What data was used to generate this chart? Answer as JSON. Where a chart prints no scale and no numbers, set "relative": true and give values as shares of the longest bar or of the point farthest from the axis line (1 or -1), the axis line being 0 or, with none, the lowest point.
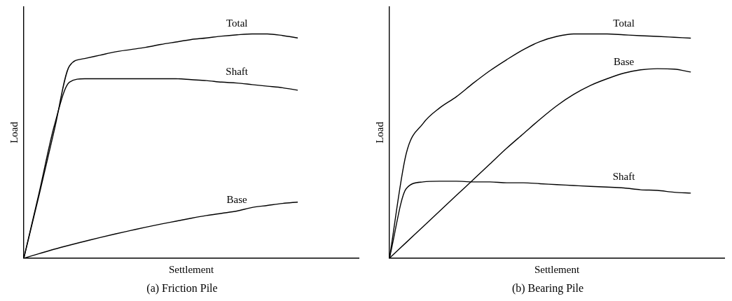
{
  "chart_data": [
    {
      "type": "line",
      "title": "(a) Friction Pile",
      "xlabel": "Settlement",
      "ylabel": "Load",
      "relative": true,
      "legend": false,
      "grid": false,
      "tick_labels": false,
      "marker": "none",
      "line_style": "solid",
      "categories": [
        null,
        null,
        null,
        null,
        null,
        null,
        null,
        null,
        null,
        null,
        null,
        null,
        null,
        null,
        null,
        null,
        null,
        null,
        null,
        null,
        null,
        null,
        null
      ],
      "series": [
        {
          "name": "Total",
          "color": "#000000",
          "values": [
            0,
            0.28,
            0.57,
            0.857,
            0.89,
            0.905,
            0.92,
            0.93,
            0.94,
            0.953,
            0.964,
            0.975,
            0.982,
            0.99,
            0.996,
            1.0,
            1.0,
            0.993,
            0.982,
            null,
            null,
            null,
            null
          ]
        },
        {
          "name": "Shaft",
          "color": "#000000",
          "values": [
            0,
            0.29,
            0.59,
            0.785,
            0.8,
            0.8,
            0.8,
            0.8,
            0.8,
            0.8,
            0.8,
            0.796,
            0.792,
            0.785,
            0.781,
            0.774,
            0.767,
            0.76,
            0.749,
            null,
            null,
            null,
            null
          ]
        },
        {
          "name": "Base",
          "color": "#000000",
          "values": [
            0,
            0.02,
            0.04,
            0.058,
            0.075,
            0.092,
            0.108,
            0.123,
            0.138,
            0.152,
            0.165,
            0.178,
            0.19,
            0.2,
            0.21,
            0.226,
            0.235,
            0.244,
            0.25,
            null,
            null,
            null,
            null
          ]
        }
      ]
    },
    {
      "type": "line",
      "title": "(b) Bearing Pile",
      "xlabel": "Settlement",
      "ylabel": "Load",
      "relative": true,
      "legend": false,
      "grid": false,
      "tick_labels": false,
      "marker": "none",
      "line_style": "solid",
      "categories": [
        null,
        null,
        null,
        null,
        null,
        null,
        null,
        null,
        null,
        null,
        null,
        null,
        null,
        null,
        null,
        null,
        null,
        null,
        null,
        null,
        null
      ],
      "series": [
        {
          "name": "Total",
          "color": "#000000",
          "values": [
            0,
            0.466,
            0.6,
            0.67,
            0.72,
            0.78,
            0.836,
            0.885,
            0.93,
            0.966,
            0.989,
            1.0,
            1.0,
            1.0,
            0.996,
            0.992,
            0.989,
            0.985,
            0.981,
            null,
            null
          ]
        },
        {
          "name": "Base",
          "color": "#000000",
          "values": [
            0,
            0.07,
            0.14,
            0.21,
            0.28,
            0.35,
            0.42,
            0.49,
            0.555,
            0.62,
            0.68,
            0.73,
            0.77,
            0.8,
            0.825,
            0.84,
            0.845,
            0.843,
            0.83,
            null,
            null
          ]
        },
        {
          "name": "Shaft",
          "color": "#000000",
          "values": [
            0,
            0.31,
            0.34,
            0.343,
            0.343,
            0.34,
            0.34,
            0.336,
            0.336,
            0.332,
            0.328,
            0.324,
            0.32,
            0.317,
            0.313,
            0.305,
            0.302,
            0.294,
            0.29,
            null,
            null
          ]
        }
      ]
    }
  ]
}
